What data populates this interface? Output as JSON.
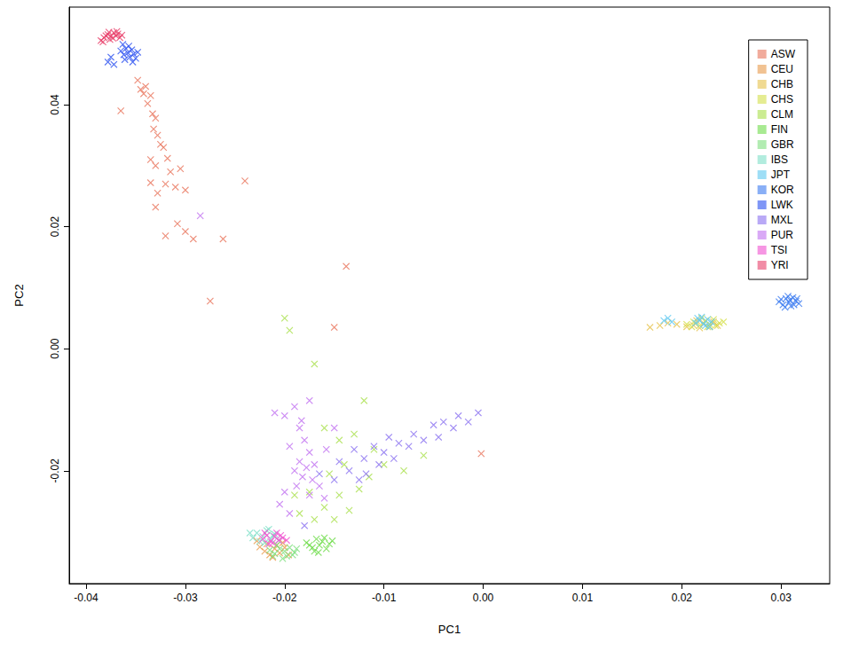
{
  "chart_data": {
    "type": "scatter",
    "x_label": "PC1",
    "y_label": "PC2",
    "xlim": [
      -0.0417,
      0.0349
    ],
    "ylim": [
      -0.0385,
      0.056
    ],
    "xticks": [
      -0.04,
      -0.03,
      -0.02,
      -0.01,
      {
        "value": 0,
        "label": "0.00"
      },
      0.01,
      0.02,
      0.03
    ],
    "yticks": [
      -0.02,
      {
        "value": 0,
        "label": "0.00"
      },
      0.02,
      0.04
    ],
    "grid": false,
    "legend": "upper right",
    "marker": "x",
    "series": [
      {
        "name": "ASW",
        "color": "#E8735A",
        "x": [
          -0.0365,
          -0.0348,
          -0.0345,
          -0.0342,
          -0.034,
          -0.0338,
          -0.0335,
          -0.0333,
          -0.033,
          -0.0332,
          -0.0328,
          -0.0325,
          -0.0322,
          -0.0335,
          -0.033,
          -0.0318,
          -0.0315,
          -0.032,
          -0.031,
          -0.0335,
          -0.0328,
          -0.0305,
          -0.03,
          -0.033,
          -0.0308,
          -0.032,
          -0.03,
          -0.0292,
          -0.0262,
          -0.024,
          -0.0275,
          -0.0138,
          -0.015,
          -0.0002
        ],
        "values": [
          0.039,
          0.044,
          0.0425,
          0.0418,
          0.043,
          0.0402,
          0.0415,
          0.0385,
          0.0378,
          0.036,
          0.035,
          0.0335,
          0.033,
          0.031,
          0.03,
          0.0312,
          0.029,
          0.027,
          0.0265,
          0.0272,
          0.0255,
          0.0295,
          0.026,
          0.0232,
          0.0205,
          0.0185,
          0.0192,
          0.018,
          0.018,
          0.0275,
          0.0078,
          0.0135,
          0.0035,
          -0.0172
        ]
      },
      {
        "name": "CEU",
        "color": "#E89A4A",
        "x": [
          -0.0225,
          -0.022,
          -0.0215,
          -0.021,
          -0.0205,
          -0.02,
          -0.0212,
          -0.0218,
          -0.0202,
          -0.0196,
          -0.0208,
          -0.0228
        ],
        "values": [
          -0.0325,
          -0.0332,
          -0.0338,
          -0.0328,
          -0.0335,
          -0.0326,
          -0.0342,
          -0.032,
          -0.0318,
          -0.0338,
          -0.0322,
          -0.0315
        ]
      },
      {
        "name": "CHB",
        "color": "#E6C24A",
        "x": [
          0.0168,
          0.0178,
          0.0186,
          0.0195,
          0.0205,
          0.0212,
          0.0218,
          0.0222,
          0.0228,
          0.0232,
          0.0236,
          0.0215
        ],
        "values": [
          0.0035,
          0.0038,
          0.0042,
          0.004,
          0.0036,
          0.0038,
          0.0034,
          0.0042,
          0.0036,
          0.0044,
          0.0038,
          0.0046
        ]
      },
      {
        "name": "CHS",
        "color": "#D4E04A",
        "x": [
          0.0205,
          0.0212,
          0.0218,
          0.0224,
          0.0228,
          0.0232,
          0.0238,
          0.022,
          0.0226,
          0.0234,
          0.021,
          0.0242
        ],
        "values": [
          0.004,
          0.0044,
          0.0038,
          0.0046,
          0.004,
          0.0048,
          0.0042,
          0.005,
          0.0036,
          0.0038,
          0.0036,
          0.0044
        ]
      },
      {
        "name": "CLM",
        "color": "#A8E04A",
        "x": [
          -0.02,
          -0.0195,
          -0.017,
          -0.012,
          -0.016,
          -0.0145,
          -0.013,
          -0.011,
          -0.01,
          -0.014,
          -0.0155,
          -0.0125,
          -0.0145,
          -0.016,
          -0.0135,
          -0.017,
          -0.015,
          -0.0115,
          -0.008,
          -0.006,
          -0.0175,
          -0.0185,
          -0.019
        ],
        "values": [
          0.005,
          0.003,
          -0.0025,
          -0.0085,
          -0.013,
          -0.015,
          -0.014,
          -0.0165,
          -0.019,
          -0.019,
          -0.0205,
          -0.023,
          -0.024,
          -0.026,
          -0.0265,
          -0.028,
          -0.028,
          -0.021,
          -0.02,
          -0.0175,
          -0.0235,
          -0.027,
          -0.024
        ]
      },
      {
        "name": "FIN",
        "color": "#6EDC4A",
        "x": [
          -0.0178,
          -0.0172,
          -0.0168,
          -0.0165,
          -0.0162,
          -0.0158,
          -0.0155,
          -0.017,
          -0.016,
          -0.0175,
          -0.0152,
          -0.0166
        ],
        "values": [
          -0.0318,
          -0.0326,
          -0.0312,
          -0.0322,
          -0.0316,
          -0.0328,
          -0.032,
          -0.0332,
          -0.031,
          -0.0322,
          -0.0315,
          -0.0334
        ]
      },
      {
        "name": "GBR",
        "color": "#7EE07E",
        "x": [
          -0.0215,
          -0.021,
          -0.0205,
          -0.02,
          -0.0198,
          -0.0195,
          -0.019,
          -0.0202,
          -0.0208,
          -0.0192,
          -0.0212,
          -0.0188
        ],
        "values": [
          -0.033,
          -0.0336,
          -0.0328,
          -0.0332,
          -0.034,
          -0.0326,
          -0.0334,
          -0.0344,
          -0.0322,
          -0.0338,
          -0.034,
          -0.0328
        ]
      },
      {
        "name": "IBS",
        "color": "#7EE0C8",
        "x": [
          -0.0232,
          -0.0228,
          -0.0222,
          -0.0218,
          -0.0214,
          -0.021,
          -0.0225,
          -0.0216,
          -0.0206,
          -0.0235,
          -0.022,
          -0.0212
        ],
        "values": [
          -0.031,
          -0.0302,
          -0.0308,
          -0.0298,
          -0.0312,
          -0.0304,
          -0.0316,
          -0.0296,
          -0.0314,
          -0.0302,
          -0.0318,
          -0.0306
        ]
      },
      {
        "name": "JPT",
        "color": "#5EC8F0",
        "x": [
          0.0182,
          0.0186,
          0.019,
          0.0214,
          0.0218,
          0.0222,
          0.0226,
          0.023,
          0.022,
          0.0224,
          0.0216,
          0.0228
        ],
        "values": [
          0.0046,
          0.005,
          0.0044,
          0.0042,
          0.0046,
          0.004,
          0.0048,
          0.0044,
          0.0052,
          0.0038,
          0.005,
          0.0036
        ]
      },
      {
        "name": "KOR",
        "color": "#3A7AF0",
        "x": [
          0.0298,
          0.0302,
          0.0305,
          0.0308,
          0.031,
          0.0312,
          0.0315,
          0.0318,
          0.0304,
          0.0307,
          0.0313,
          0.0309,
          0.03,
          0.0316
        ],
        "values": [
          0.0077,
          0.0072,
          0.0082,
          0.0076,
          0.007,
          0.0084,
          0.0078,
          0.0074,
          0.0068,
          0.0086,
          0.0072,
          0.008,
          0.0081,
          0.0082
        ]
      },
      {
        "name": "LWK",
        "color": "#2A50F0",
        "x": [
          -0.0378,
          -0.0375,
          -0.0372,
          -0.0365,
          -0.0362,
          -0.036,
          -0.0358,
          -0.0356,
          -0.0354,
          -0.0352,
          -0.035,
          -0.0357,
          -0.0361,
          -0.0353,
          -0.0348,
          -0.0363
        ],
        "values": [
          0.047,
          0.0478,
          0.0466,
          0.0488,
          0.0482,
          0.0492,
          0.0485,
          0.0478,
          0.049,
          0.0483,
          0.0476,
          0.0496,
          0.0474,
          0.047,
          0.0486,
          0.0499
        ]
      },
      {
        "name": "MXL",
        "color": "#8A70F0",
        "x": [
          -0.0005,
          -0.0015,
          -0.0025,
          -0.003,
          -0.0045,
          -0.005,
          -0.006,
          -0.007,
          -0.0075,
          -0.0085,
          -0.0095,
          -0.01,
          -0.011,
          -0.0105,
          -0.012,
          -0.0118,
          -0.013,
          -0.0135,
          -0.0145,
          -0.015,
          -0.0165,
          -0.009,
          -0.0125,
          -0.018,
          -0.004
        ],
        "values": [
          -0.0105,
          -0.012,
          -0.011,
          -0.013,
          -0.0145,
          -0.0125,
          -0.015,
          -0.014,
          -0.016,
          -0.0155,
          -0.0145,
          -0.017,
          -0.016,
          -0.019,
          -0.018,
          -0.0205,
          -0.0165,
          -0.02,
          -0.0185,
          -0.0215,
          -0.0205,
          -0.018,
          -0.0215,
          -0.029,
          -0.012
        ]
      },
      {
        "name": "PUR",
        "color": "#C070F0",
        "x": [
          -0.0285,
          -0.021,
          -0.02,
          -0.019,
          -0.0175,
          -0.0185,
          -0.018,
          -0.0195,
          -0.0175,
          -0.0185,
          -0.0178,
          -0.019,
          -0.0182,
          -0.0172,
          -0.02,
          -0.0165,
          -0.0188,
          -0.016,
          -0.0175,
          -0.0205,
          -0.0195,
          -0.017,
          -0.0158,
          -0.015,
          -0.0183
        ],
        "values": [
          0.0218,
          -0.0105,
          -0.011,
          -0.0095,
          -0.0085,
          -0.013,
          -0.015,
          -0.016,
          -0.017,
          -0.0185,
          -0.0195,
          -0.02,
          -0.021,
          -0.0215,
          -0.0235,
          -0.0225,
          -0.0225,
          -0.0245,
          -0.024,
          -0.0255,
          -0.027,
          -0.019,
          -0.0165,
          -0.013,
          -0.0118
        ]
      },
      {
        "name": "TSI",
        "color": "#F050D0",
        "x": [
          -0.0222,
          -0.0218,
          -0.0214,
          -0.021,
          -0.0206,
          -0.0202,
          -0.0216,
          -0.0208,
          -0.0212,
          -0.022,
          -0.0204,
          -0.0198
        ],
        "values": [
          -0.0312,
          -0.0306,
          -0.0316,
          -0.0308,
          -0.0314,
          -0.031,
          -0.032,
          -0.0302,
          -0.0318,
          -0.0302,
          -0.0306,
          -0.0314
        ]
      },
      {
        "name": "YRI",
        "color": "#E8406A",
        "x": [
          -0.0385,
          -0.0382,
          -0.0378,
          -0.0375,
          -0.0372,
          -0.037,
          -0.0368,
          -0.0366,
          -0.0376,
          -0.038,
          -0.0373,
          -0.0369,
          -0.0377,
          -0.0364,
          -0.0383
        ],
        "values": [
          0.0505,
          0.051,
          0.0515,
          0.0512,
          0.0518,
          0.0513,
          0.0516,
          0.051,
          0.0507,
          0.0513,
          0.0509,
          0.052,
          0.0519,
          0.0514,
          0.0503
        ]
      }
    ]
  }
}
